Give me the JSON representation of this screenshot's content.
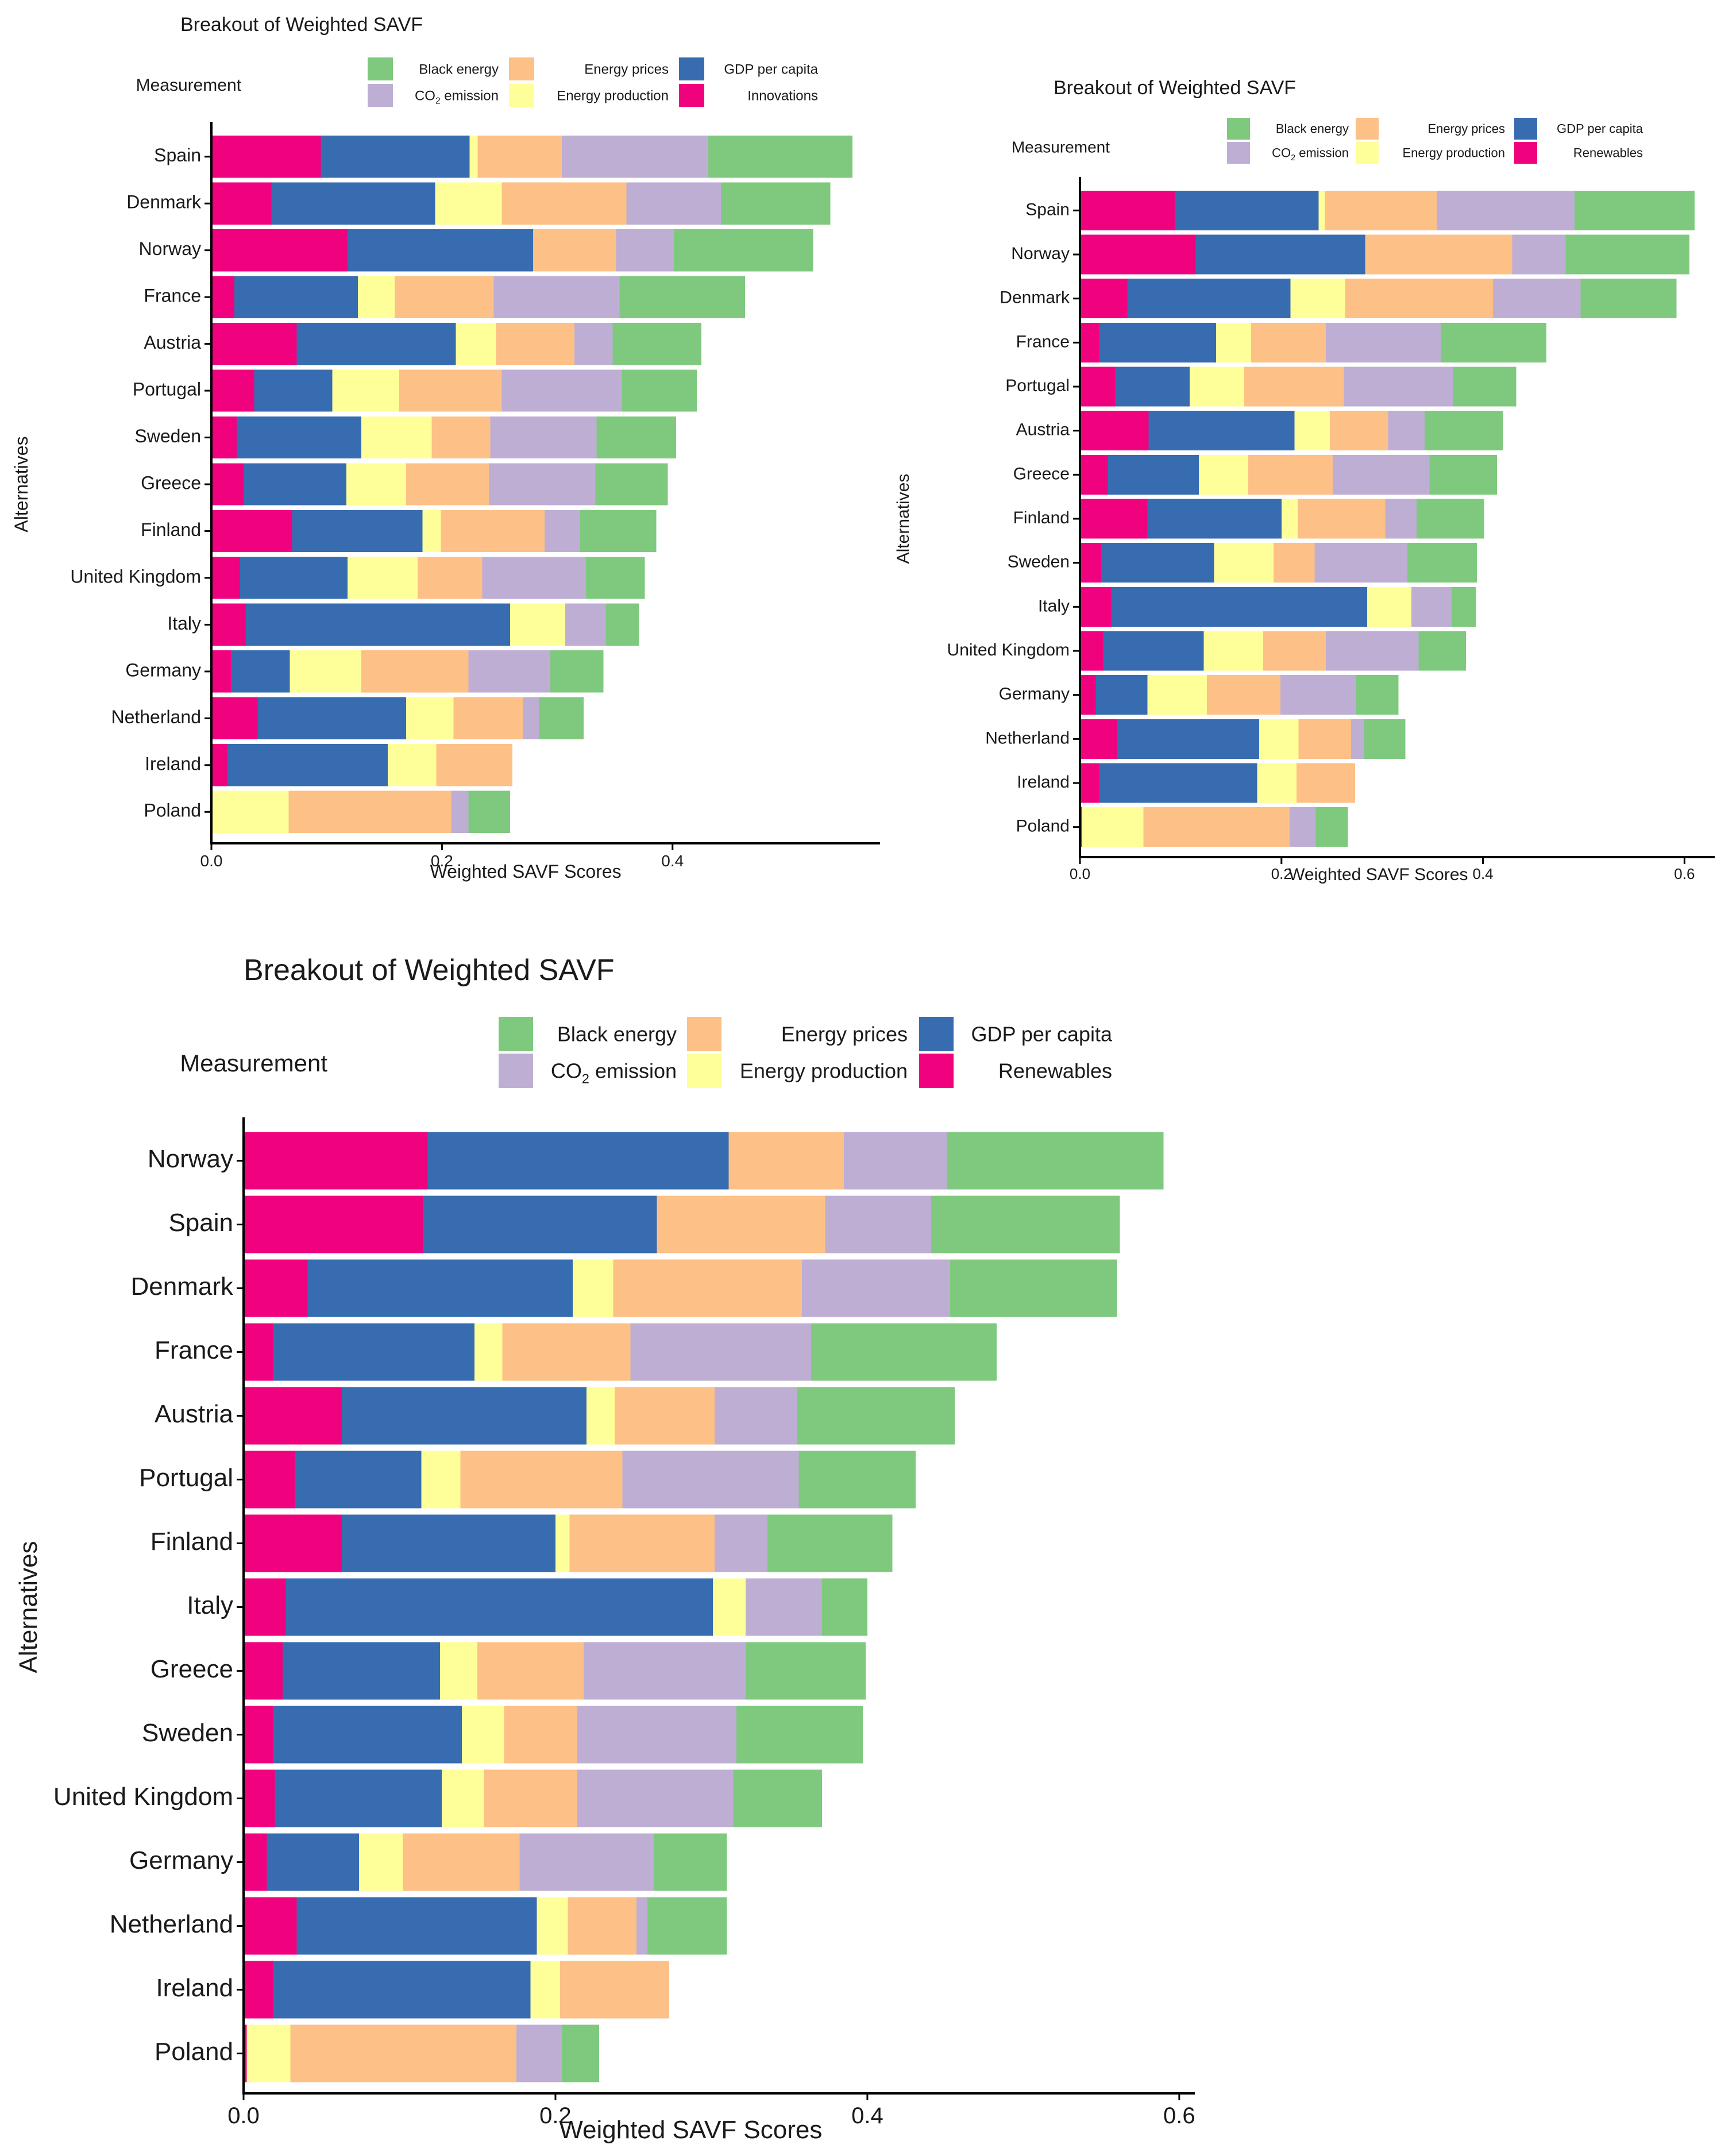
{
  "colors": {
    "Black energy": "#7fc97f",
    "CO2 emission": "#beaed4",
    "Energy prices": "#fdc086",
    "Energy production": "#ffff99",
    "GDP per capita": "#386cb0",
    "Innovations": "#f0027f",
    "Renewables": "#f0027f"
  },
  "chart_data": [
    {
      "type": "bar",
      "orientation": "horizontal",
      "stacked": true,
      "title": "Breakout of Weighted SAVF",
      "xlabel": "Weighted SAVF Scores",
      "ylabel": "Alternatives",
      "xlim": [
        0,
        0.58
      ],
      "xticks": [
        "0.0",
        "0.2",
        "0.4"
      ],
      "xtick_values": [
        0,
        0.2,
        0.4
      ],
      "legend": {
        "title": "Measurement",
        "position": "top",
        "entries": [
          {
            "key": "Black energy",
            "label": "Black energy"
          },
          {
            "key": "CO2 emission",
            "label_main": "CO",
            "label_sub": "2",
            "label_rest": " emission"
          },
          {
            "key": "Energy prices",
            "label": "Energy prices"
          },
          {
            "key": "Energy production",
            "label": "Energy production"
          },
          {
            "key": "GDP per capita",
            "label": "GDP per capita"
          },
          {
            "key": "Innovations",
            "label": "Innovations"
          }
        ]
      },
      "stack_order": [
        "Innovations",
        "GDP per capita",
        "Energy production",
        "Energy prices",
        "CO2 emission",
        "Black energy"
      ],
      "categories": [
        "Spain",
        "Denmark",
        "Norway",
        "France",
        "Austria",
        "Portugal",
        "Sweden",
        "Greece",
        "Finland",
        "United Kingdom",
        "Italy",
        "Germany",
        "Netherland",
        "Ireland",
        "Poland"
      ],
      "series": [
        {
          "name": "Innovations",
          "values": [
            0.095,
            0.052,
            0.118,
            0.02,
            0.074,
            0.037,
            0.022,
            0.028,
            0.07,
            0.025,
            0.03,
            0.017,
            0.04,
            0.014,
            0.0
          ]
        },
        {
          "name": "GDP per capita",
          "values": [
            0.129,
            0.142,
            0.161,
            0.107,
            0.138,
            0.068,
            0.108,
            0.089,
            0.113,
            0.093,
            0.229,
            0.051,
            0.129,
            0.139,
            0.0
          ]
        },
        {
          "name": "Energy production",
          "values": [
            0.007,
            0.058,
            0.0,
            0.032,
            0.035,
            0.058,
            0.061,
            0.052,
            0.016,
            0.061,
            0.048,
            0.062,
            0.041,
            0.042,
            0.067
          ]
        },
        {
          "name": "Energy prices",
          "values": [
            0.073,
            0.108,
            0.072,
            0.086,
            0.068,
            0.089,
            0.051,
            0.072,
            0.09,
            0.056,
            0.0,
            0.093,
            0.06,
            0.066,
            0.141
          ]
        },
        {
          "name": "CO2 emission",
          "values": [
            0.127,
            0.082,
            0.05,
            0.109,
            0.033,
            0.104,
            0.092,
            0.092,
            0.031,
            0.09,
            0.035,
            0.071,
            0.014,
            0.0,
            0.015
          ]
        },
        {
          "name": "Black energy",
          "values": [
            0.125,
            0.095,
            0.121,
            0.109,
            0.077,
            0.065,
            0.069,
            0.063,
            0.066,
            0.051,
            0.029,
            0.046,
            0.039,
            0.0,
            0.036
          ]
        }
      ]
    },
    {
      "type": "bar",
      "orientation": "horizontal",
      "stacked": true,
      "title": "Breakout of Weighted SAVF",
      "xlabel": "Weighted SAVF Scores",
      "ylabel": "Alternatives",
      "xlim": [
        0,
        0.63
      ],
      "xticks": [
        "0.0",
        "0.2",
        "0.4",
        "0.6"
      ],
      "xtick_values": [
        0,
        0.2,
        0.4,
        0.6
      ],
      "legend": {
        "title": "Measurement",
        "position": "top",
        "entries": [
          {
            "key": "Black energy",
            "label": "Black energy"
          },
          {
            "key": "CO2 emission",
            "label_main": "CO",
            "label_sub": "2",
            "label_rest": " emission"
          },
          {
            "key": "Energy prices",
            "label": "Energy prices"
          },
          {
            "key": "Energy production",
            "label": "Energy production"
          },
          {
            "key": "GDP per capita",
            "label": "GDP per capita"
          },
          {
            "key": "Renewables",
            "label": "Renewables"
          }
        ]
      },
      "stack_order": [
        "Renewables",
        "GDP per capita",
        "Energy production",
        "Energy prices",
        "CO2 emission",
        "Black energy"
      ],
      "categories": [
        "Spain",
        "Norway",
        "Denmark",
        "France",
        "Portugal",
        "Austria",
        "Greece",
        "Finland",
        "Sweden",
        "Italy",
        "United Kingdom",
        "Germany",
        "Netherland",
        "Ireland",
        "Poland"
      ],
      "series": [
        {
          "name": "Renewables",
          "values": [
            0.094,
            0.115,
            0.047,
            0.019,
            0.035,
            0.068,
            0.028,
            0.067,
            0.021,
            0.031,
            0.023,
            0.016,
            0.037,
            0.019,
            0.002
          ]
        },
        {
          "name": "GDP per capita",
          "values": [
            0.143,
            0.168,
            0.162,
            0.116,
            0.074,
            0.145,
            0.09,
            0.133,
            0.112,
            0.254,
            0.1,
            0.051,
            0.141,
            0.157,
            0.0
          ]
        },
        {
          "name": "Energy production",
          "values": [
            0.006,
            0.0,
            0.054,
            0.035,
            0.054,
            0.035,
            0.049,
            0.016,
            0.059,
            0.044,
            0.059,
            0.059,
            0.039,
            0.039,
            0.061
          ]
        },
        {
          "name": "Energy prices",
          "values": [
            0.111,
            0.146,
            0.147,
            0.074,
            0.099,
            0.058,
            0.084,
            0.087,
            0.041,
            0.0,
            0.062,
            0.073,
            0.052,
            0.058,
            0.145
          ]
        },
        {
          "name": "CO2 emission",
          "values": [
            0.137,
            0.053,
            0.087,
            0.114,
            0.108,
            0.036,
            0.096,
            0.031,
            0.092,
            0.04,
            0.092,
            0.075,
            0.013,
            0.0,
            0.026
          ]
        },
        {
          "name": "Black energy",
          "values": [
            0.119,
            0.123,
            0.095,
            0.105,
            0.063,
            0.078,
            0.067,
            0.067,
            0.069,
            0.024,
            0.047,
            0.042,
            0.041,
            0.0,
            0.032
          ]
        }
      ]
    },
    {
      "type": "bar",
      "orientation": "horizontal",
      "stacked": true,
      "title": "Breakout of Weighted SAVF",
      "xlabel": "Weighted SAVF Scores",
      "ylabel": "Alternatives",
      "xlim": [
        0,
        0.61
      ],
      "xticks": [
        "0.0",
        "0.2",
        "0.4",
        "0.6"
      ],
      "xtick_values": [
        0,
        0.2,
        0.4,
        0.6
      ],
      "legend": {
        "title": "Measurement",
        "position": "top",
        "entries": [
          {
            "key": "Black energy",
            "label": "Black energy"
          },
          {
            "key": "CO2 emission",
            "label_main": "CO",
            "label_sub": "2",
            "label_rest": " emission"
          },
          {
            "key": "Energy prices",
            "label": "Energy prices"
          },
          {
            "key": "Energy production",
            "label": "Energy production"
          },
          {
            "key": "GDP per capita",
            "label": "GDP per capita"
          },
          {
            "key": "Renewables",
            "label": "Renewables"
          }
        ]
      },
      "stack_order": [
        "Renewables",
        "GDP per capita",
        "Energy production",
        "Energy prices",
        "CO2 emission",
        "Black energy"
      ],
      "categories": [
        "Norway",
        "Spain",
        "Denmark",
        "France",
        "Austria",
        "Portugal",
        "Finland",
        "Italy",
        "Greece",
        "Sweden",
        "United Kingdom",
        "Germany",
        "Netherland",
        "Ireland",
        "Poland"
      ],
      "series": [
        {
          "name": "Renewables",
          "values": [
            0.118,
            0.115,
            0.041,
            0.019,
            0.063,
            0.033,
            0.063,
            0.027,
            0.025,
            0.019,
            0.02,
            0.015,
            0.034,
            0.019,
            0.002
          ]
        },
        {
          "name": "GDP per capita",
          "values": [
            0.193,
            0.15,
            0.17,
            0.129,
            0.157,
            0.081,
            0.137,
            0.274,
            0.101,
            0.121,
            0.107,
            0.059,
            0.154,
            0.165,
            0.0
          ]
        },
        {
          "name": "Energy production",
          "values": [
            0.0,
            0.0,
            0.026,
            0.018,
            0.018,
            0.025,
            0.009,
            0.021,
            0.024,
            0.027,
            0.027,
            0.028,
            0.02,
            0.019,
            0.028
          ]
        },
        {
          "name": "Energy prices",
          "values": [
            0.074,
            0.108,
            0.121,
            0.082,
            0.064,
            0.104,
            0.093,
            0.0,
            0.068,
            0.047,
            0.06,
            0.075,
            0.044,
            0.07,
            0.145
          ]
        },
        {
          "name": "CO2 emission",
          "values": [
            0.066,
            0.068,
            0.095,
            0.116,
            0.053,
            0.113,
            0.034,
            0.049,
            0.104,
            0.102,
            0.1,
            0.086,
            0.007,
            0.0,
            0.029
          ]
        },
        {
          "name": "Black energy",
          "values": [
            0.139,
            0.121,
            0.107,
            0.119,
            0.101,
            0.075,
            0.08,
            0.029,
            0.077,
            0.081,
            0.057,
            0.047,
            0.051,
            0.0,
            0.024
          ]
        }
      ]
    }
  ]
}
